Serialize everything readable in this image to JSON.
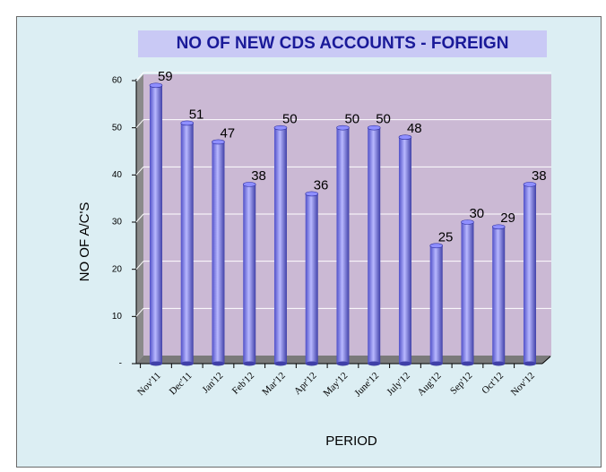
{
  "chart_data": {
    "type": "bar",
    "title": "NO OF NEW CDS ACCOUNTS - FOREIGN",
    "x_label": "PERIOD",
    "y_label": "NO OF A/C'S",
    "categories": [
      "Nov'11",
      "Dec'11",
      "Jan'12",
      "Feb'12",
      "Mar'12",
      "Apr'12",
      "May'12",
      "June'12",
      "July'12",
      "Aug'12",
      "Sep'12",
      "Oct'12",
      "Nov'12"
    ],
    "values": [
      59,
      51,
      47,
      38,
      50,
      36,
      50,
      50,
      48,
      25,
      30,
      29,
      38
    ],
    "color": "#8f8fff",
    "ylim": [
      0,
      60
    ],
    "yticks": [
      {
        "value": 0,
        "label": "-"
      },
      10,
      20,
      30,
      40,
      50,
      60
    ],
    "grid": true
  }
}
